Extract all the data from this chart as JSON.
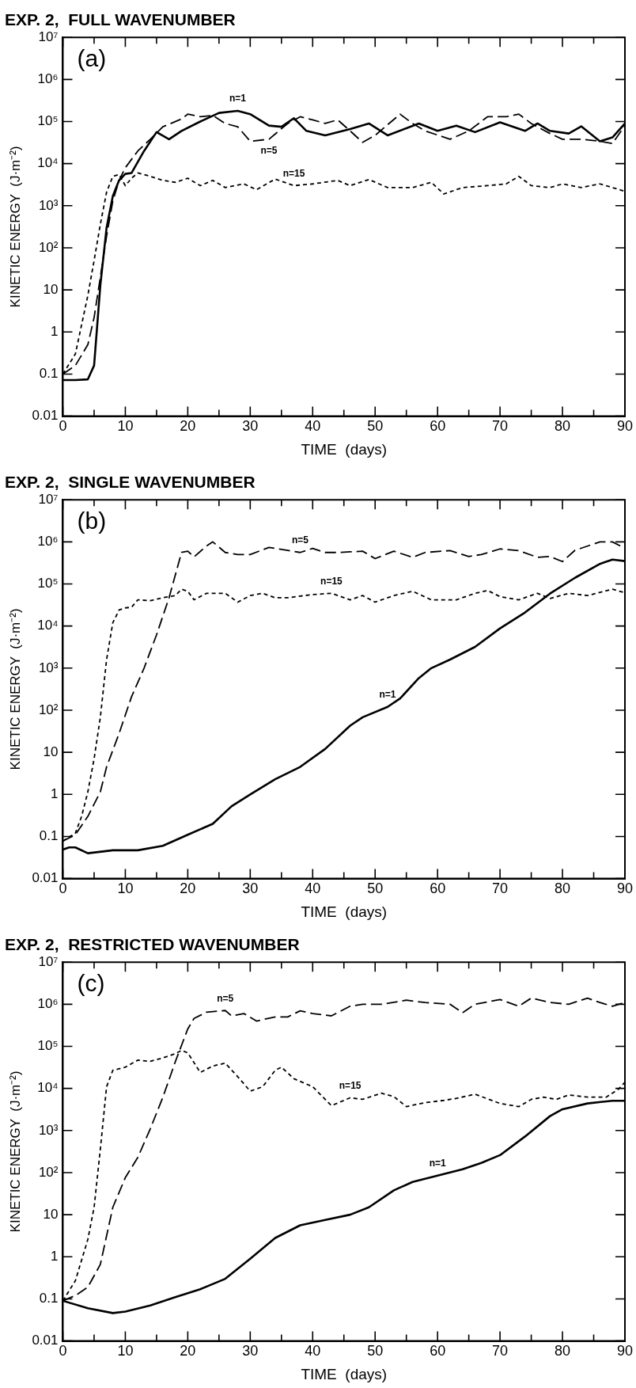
{
  "chart_data": [
    {
      "type": "line",
      "title": "EXP. 2,  FULL WAVENUMBER",
      "xlabel": "TIME  (days)",
      "ylabel": "KINETIC ENERGY  (J·m⁻²)",
      "log": "y",
      "marker": "none",
      "xlim": [
        0,
        90
      ],
      "ylim": [
        0.01,
        10000000
      ],
      "xticks": [
        0,
        {
          "value": 5,
          "label": null
        },
        10,
        {
          "value": 15,
          "label": null
        },
        20,
        {
          "value": 25,
          "label": null
        },
        30,
        {
          "value": 35,
          "label": null
        },
        40,
        {
          "value": 45,
          "label": null
        },
        50,
        {
          "value": 55,
          "label": null
        },
        60,
        {
          "value": 65,
          "label": null
        },
        70,
        {
          "value": 75,
          "label": null
        },
        80,
        {
          "value": 85,
          "label": null
        },
        90
      ],
      "yticks": [
        0.01,
        0.1,
        1,
        10,
        {
          "value": 100,
          "label": "10²"
        },
        {
          "value": 1000,
          "label": "10³"
        },
        {
          "value": 10000,
          "label": "10⁴"
        },
        {
          "value": 100000,
          "label": "10⁵"
        },
        {
          "value": 1000000,
          "label": "10⁶"
        },
        {
          "value": 10000000,
          "label": "10⁷"
        }
      ],
      "series": [
        {
          "color": "#000000",
          "line_style": "solid",
          "x": [
            0,
            2,
            4,
            5,
            6,
            7,
            8,
            9,
            10,
            11,
            13,
            15,
            17,
            19,
            22,
            25,
            28,
            30,
            33,
            35,
            37,
            39,
            42,
            46,
            49,
            52,
            57,
            60,
            63,
            66,
            70,
            74,
            76,
            78,
            81,
            83,
            86,
            88,
            90
          ],
          "values": [
            0.072,
            0.072,
            0.075,
            0.16,
            13,
            300,
            1700,
            4000,
            5700,
            6000,
            20000,
            56000,
            38000,
            60000,
            100000,
            160000,
            180000,
            150000,
            80000,
            75000,
            120000,
            60000,
            47000,
            66000,
            90000,
            47000,
            90000,
            60000,
            80000,
            56000,
            96000,
            60000,
            90000,
            60000,
            52000,
            77000,
            34000,
            42000,
            90000
          ]
        },
        {
          "color": "#000000",
          "line_style": "dashed",
          "x": [
            0,
            2,
            4,
            5,
            6,
            7,
            8,
            9,
            10,
            12,
            14,
            16,
            19,
            20,
            22,
            24,
            26,
            28,
            30,
            33,
            36,
            38,
            40,
            42,
            44,
            46,
            48,
            50,
            54,
            56,
            58,
            62,
            65,
            68,
            71,
            73,
            75,
            78,
            80,
            83,
            86,
            88,
            90
          ],
          "values": [
            0.1,
            0.16,
            0.5,
            2.2,
            20,
            190,
            1300,
            4000,
            8000,
            20000,
            38000,
            75000,
            115000,
            150000,
            130000,
            140000,
            90000,
            75000,
            34000,
            38000,
            90000,
            130000,
            110000,
            90000,
            110000,
            60000,
            32000,
            47000,
            150000,
            90000,
            60000,
            38000,
            60000,
            130000,
            130000,
            150000,
            90000,
            52000,
            38000,
            38000,
            34000,
            30000,
            80000
          ]
        },
        {
          "color": "#000000",
          "line_style": "dotted",
          "x": [
            0,
            2,
            4,
            5,
            6,
            7,
            8,
            9,
            10,
            11,
            12,
            14,
            16,
            18,
            20,
            22,
            24,
            26,
            29,
            31,
            34,
            37,
            40,
            44,
            46,
            49,
            52,
            56,
            59,
            61,
            64,
            68,
            71,
            73,
            75,
            78,
            80,
            83,
            86,
            88,
            90
          ],
          "values": [
            0.1,
            0.3,
            7.4,
            50,
            360,
            2100,
            5000,
            5500,
            3000,
            4500,
            6000,
            5000,
            4000,
            3600,
            4500,
            3000,
            4000,
            2700,
            3300,
            2400,
            4300,
            3000,
            3300,
            4000,
            3000,
            4200,
            2700,
            2700,
            3600,
            1900,
            2700,
            3000,
            3300,
            5000,
            3000,
            2700,
            3300,
            2700,
            3300,
            2700,
            2200
          ]
        }
      ],
      "annotations": [
        "(a)",
        {
          "text": "n=1",
          "x": 28,
          "y": 180000
        },
        {
          "text": "n=5",
          "x": 33,
          "y": 38000
        },
        {
          "text": "n=15",
          "x": 37,
          "y": 3000
        }
      ]
    },
    {
      "type": "line",
      "title": "EXP. 2,  SINGLE WAVENUMBER",
      "xlabel": "TIME  (days)",
      "ylabel": "KINETIC ENERGY  (J·m⁻²)",
      "log": "y",
      "marker": "none",
      "xlim": [
        0,
        90
      ],
      "ylim": [
        0.01,
        10000000
      ],
      "xticks": [
        0,
        {
          "value": 5,
          "label": null
        },
        10,
        {
          "value": 15,
          "label": null
        },
        20,
        {
          "value": 25,
          "label": null
        },
        30,
        {
          "value": 35,
          "label": null
        },
        40,
        {
          "value": 45,
          "label": null
        },
        50,
        {
          "value": 55,
          "label": null
        },
        60,
        {
          "value": 65,
          "label": null
        },
        70,
        {
          "value": 75,
          "label": null
        },
        80,
        {
          "value": 85,
          "label": null
        },
        90
      ],
      "yticks": [
        0.01,
        0.1,
        1,
        10,
        {
          "value": 100,
          "label": "10²"
        },
        {
          "value": 1000,
          "label": "10³"
        },
        {
          "value": 10000,
          "label": "10⁴"
        },
        {
          "value": 100000,
          "label": "10⁵"
        },
        {
          "value": 1000000,
          "label": "10⁶"
        },
        {
          "value": 10000000,
          "label": "10⁷"
        }
      ],
      "series": [
        {
          "color": "#000000",
          "line_style": "solid",
          "x": [
            0,
            1,
            2,
            4,
            8,
            12,
            16,
            20,
            24,
            27,
            30,
            34,
            38,
            42,
            46,
            48,
            52,
            54,
            57,
            59,
            62,
            66,
            70,
            74,
            78,
            82,
            86,
            88,
            90
          ],
          "values": [
            0.049,
            0.055,
            0.055,
            0.04,
            0.047,
            0.047,
            0.06,
            0.11,
            0.2,
            0.52,
            1,
            2.3,
            4.5,
            12,
            43,
            68,
            120,
            190,
            580,
            1000,
            1600,
            3200,
            8800,
            21000,
            59000,
            140000,
            300000,
            380000,
            350000
          ]
        },
        {
          "color": "#000000",
          "line_style": "dashed",
          "x": [
            0,
            2,
            4,
            6,
            7,
            9,
            11,
            13,
            15,
            17,
            19,
            20,
            21,
            23,
            24,
            26,
            28,
            30,
            33,
            36,
            38,
            40,
            42,
            44,
            46,
            48,
            50,
            53,
            56,
            58,
            62,
            65,
            67,
            70,
            73,
            76,
            78,
            80,
            82,
            86,
            88,
            90
          ],
          "values": [
            0.078,
            0.11,
            0.3,
            1.15,
            4.5,
            28,
            210,
            1000,
            6200,
            47000,
            560000,
            600000,
            440000,
            800000,
            1000000,
            560000,
            500000,
            500000,
            740000,
            630000,
            560000,
            700000,
            560000,
            560000,
            580000,
            600000,
            400000,
            600000,
            430000,
            560000,
            620000,
            450000,
            500000,
            680000,
            620000,
            430000,
            450000,
            340000,
            630000,
            1000000,
            1000000,
            700000
          ]
        },
        {
          "color": "#000000",
          "line_style": "dotted",
          "x": [
            0,
            2,
            3,
            4,
            5,
            6,
            7,
            8,
            9,
            10,
            11,
            12,
            14,
            16,
            18,
            19,
            20,
            21,
            23,
            26,
            28,
            30,
            32,
            34,
            36,
            40,
            43,
            46,
            48,
            50,
            53,
            56,
            59,
            63,
            66,
            68,
            70,
            73,
            76,
            78,
            81,
            84,
            88,
            90
          ],
          "values": [
            0.078,
            0.12,
            0.3,
            1.15,
            7,
            68,
            1600,
            12000,
            24000,
            27000,
            28000,
            42000,
            40000,
            47000,
            53000,
            75000,
            67000,
            42000,
            60000,
            60000,
            37000,
            53000,
            60000,
            47000,
            47000,
            56000,
            60000,
            42000,
            53000,
            37000,
            53000,
            67000,
            42000,
            42000,
            60000,
            70000,
            50000,
            42000,
            60000,
            45000,
            60000,
            53000,
            75000,
            62000
          ]
        }
      ],
      "annotations": [
        "(b)",
        {
          "text": "n=5",
          "x": 38,
          "y": 560000
        },
        {
          "text": "n=15",
          "x": 43,
          "y": 60000
        },
        {
          "text": "n=1",
          "x": 52,
          "y": 120
        }
      ]
    },
    {
      "type": "line",
      "title": "EXP. 2,  RESTRICTED WAVENUMBER",
      "xlabel": "TIME  (days)",
      "ylabel": "KINETIC ENERGY  (J·m⁻²)",
      "log": "y",
      "marker": "none",
      "xlim": [
        0,
        90
      ],
      "ylim": [
        0.01,
        10000000
      ],
      "xticks": [
        0,
        {
          "value": 5,
          "label": null
        },
        10,
        {
          "value": 15,
          "label": null
        },
        20,
        {
          "value": 25,
          "label": null
        },
        30,
        {
          "value": 35,
          "label": null
        },
        40,
        {
          "value": 45,
          "label": null
        },
        50,
        {
          "value": 55,
          "label": null
        },
        60,
        {
          "value": 65,
          "label": null
        },
        70,
        {
          "value": 75,
          "label": null
        },
        80,
        {
          "value": 85,
          "label": null
        },
        90
      ],
      "yticks": [
        0.01,
        0.1,
        1,
        10,
        {
          "value": 100,
          "label": "10²"
        },
        {
          "value": 1000,
          "label": "10³"
        },
        {
          "value": 10000,
          "label": "10⁴"
        },
        {
          "value": 100000,
          "label": "10⁵"
        },
        {
          "value": 1000000,
          "label": "10⁶"
        },
        {
          "value": 10000000,
          "label": "10⁷"
        }
      ],
      "series": [
        {
          "color": "#000000",
          "line_style": "solid",
          "x": [
            0,
            4,
            8,
            10,
            14,
            18,
            22,
            26,
            30,
            34,
            38,
            42,
            46,
            49,
            53,
            56,
            60,
            64,
            67,
            70,
            74,
            78,
            80,
            84,
            88,
            90
          ],
          "values": [
            0.09,
            0.06,
            0.046,
            0.05,
            0.07,
            0.11,
            0.17,
            0.3,
            0.9,
            2.8,
            5.6,
            7.5,
            10,
            15,
            38,
            60,
            85,
            120,
            170,
            260,
            720,
            2200,
            3200,
            4400,
            5100,
            5100
          ]
        },
        {
          "color": "#000000",
          "line_style": "dashed",
          "x": [
            0,
            2,
            4,
            6,
            8,
            10,
            12,
            14,
            16,
            18,
            20,
            21,
            23,
            26,
            27,
            29,
            31,
            34,
            36,
            38,
            40,
            43,
            46,
            48,
            51,
            55,
            58,
            62,
            64,
            66,
            70,
            73,
            75,
            78,
            81,
            84,
            86,
            88,
            90
          ],
          "values": [
            0.09,
            0.12,
            0.19,
            0.66,
            15,
            76,
            230,
            1100,
            6100,
            43000,
            260000,
            460000,
            650000,
            710000,
            530000,
            600000,
            400000,
            500000,
            500000,
            700000,
            600000,
            530000,
            900000,
            1000000,
            1000000,
            1250000,
            1100000,
            1000000,
            630000,
            1000000,
            1300000,
            900000,
            1400000,
            1100000,
            1000000,
            1400000,
            1100000,
            900000,
            1100000
          ]
        },
        {
          "color": "#000000",
          "line_style": "dotted",
          "x": [
            0,
            2,
            4,
            5,
            6,
            7,
            8,
            10,
            12,
            14,
            16,
            18,
            19,
            20,
            22,
            24,
            26,
            28,
            30,
            32,
            34,
            35,
            37,
            40,
            43,
            46,
            48,
            51,
            53,
            55,
            58,
            61,
            63,
            66,
            70,
            73,
            75,
            77,
            79,
            81,
            84,
            87,
            89,
            90
          ],
          "values": [
            0.09,
            0.27,
            2.6,
            15,
            360,
            11000,
            27000,
            32000,
            47000,
            44000,
            53000,
            67000,
            80000,
            70000,
            24000,
            34000,
            40000,
            19000,
            8600,
            11000,
            27000,
            32000,
            17000,
            11000,
            3900,
            6000,
            5500,
            7700,
            6400,
            3700,
            4600,
            5200,
            5800,
            7300,
            4400,
            3700,
            5500,
            6200,
            5500,
            7000,
            6200,
            6200,
            9700,
            14000
          ]
        }
      ],
      "annotations": [
        "(c)",
        {
          "text": "n=5",
          "x": 26,
          "y": 710000
        },
        {
          "text": "n=15",
          "x": 46,
          "y": 6000
        },
        {
          "text": "n=1",
          "x": 60,
          "y": 85
        }
      ]
    }
  ]
}
